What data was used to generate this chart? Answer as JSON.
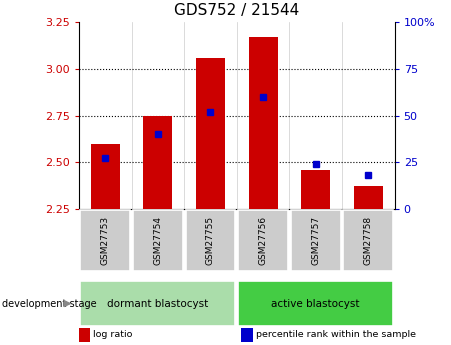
{
  "title": "GDS752 / 21544",
  "samples": [
    "GSM27753",
    "GSM27754",
    "GSM27755",
    "GSM27756",
    "GSM27757",
    "GSM27758"
  ],
  "log_ratios": [
    2.6,
    2.75,
    3.06,
    3.17,
    2.46,
    2.37
  ],
  "percentile_ranks": [
    27,
    40,
    52,
    60,
    24,
    18
  ],
  "y_min": 2.25,
  "y_max": 3.25,
  "y_ticks": [
    2.25,
    2.5,
    2.75,
    3.0,
    3.25
  ],
  "y_right_ticks": [
    0,
    25,
    50,
    75,
    100
  ],
  "bar_color": "#cc0000",
  "blue_color": "#0000cc",
  "bar_width": 0.55,
  "categories": [
    {
      "label": "dormant blastocyst",
      "sample_indices": [
        0,
        1,
        2
      ],
      "color": "#aaddaa"
    },
    {
      "label": "active blastocyst",
      "sample_indices": [
        3,
        4,
        5
      ],
      "color": "#44cc44"
    }
  ],
  "category_label": "development stage",
  "legend_items": [
    {
      "color": "#cc0000",
      "label": "log ratio"
    },
    {
      "color": "#0000cc",
      "label": "percentile rank within the sample"
    }
  ],
  "tick_label_color_left": "#cc0000",
  "tick_label_color_right": "#0000cc",
  "background_color": "#ffffff",
  "sample_box_color": "#cccccc",
  "grid_ticks": [
    2.5,
    2.75,
    3.0
  ],
  "title_fontsize": 11
}
